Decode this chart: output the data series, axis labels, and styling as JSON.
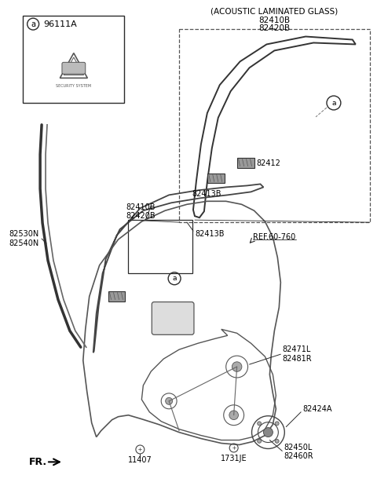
{
  "bg": "#ffffff",
  "lc": "#2a2a2a",
  "tc": "#000000",
  "acoustic_title": "(ACOUSTIC LAMINATED GLASS)",
  "part_labels": {
    "96111A": "96111A",
    "82410B": "82410B",
    "82420B": "82420B",
    "82412": "82412",
    "82413B": "82413B",
    "82530N": "82530N",
    "82540N": "82540N",
    "82471L": "82471L",
    "82481R": "82481R",
    "82424A": "82424A",
    "1731JE": "1731JE",
    "82450L": "82450L",
    "82460R": "82460R",
    "11407": "11407",
    "REF60760": "REF.60-760"
  }
}
